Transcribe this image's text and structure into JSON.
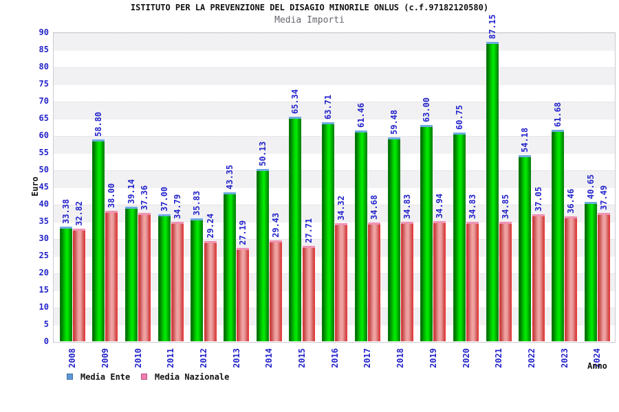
{
  "title": "ISTITUTO PER LA PREVENZIONE DEL DISAGIO MINORILE ONLUS (c.f.97182120580)",
  "subtitle": "Media Importi",
  "chart_data": {
    "type": "bar",
    "title": "ISTITUTO PER LA PREVENZIONE DEL DISAGIO MINORILE ONLUS (c.f.97182120580)",
    "subtitle": "Media Importi",
    "xlabel": "Anno",
    "ylabel": "Euro",
    "ylim": [
      0,
      90
    ],
    "ytick_step": 5,
    "grid": "horizontal-bands",
    "legend_position": "bottom-left",
    "categories": [
      "2008",
      "2009",
      "2010",
      "2011",
      "2012",
      "2013",
      "2014",
      "2015",
      "2016",
      "2017",
      "2018",
      "2019",
      "2020",
      "2021",
      "2022",
      "2023",
      "2024"
    ],
    "series": [
      {
        "name": "Media Ente",
        "bar_color": "#00cc00",
        "legend_color": "#5e9ad8",
        "values": [
          33.38,
          58.8,
          39.14,
          37.0,
          35.83,
          43.35,
          50.13,
          65.34,
          63.71,
          61.46,
          59.48,
          63.0,
          60.75,
          87.15,
          54.18,
          61.68,
          40.65
        ]
      },
      {
        "name": "Media Nazionale",
        "bar_color": "#ee8899",
        "legend_color": "#ee7fae",
        "values": [
          32.82,
          38.0,
          37.36,
          34.79,
          29.24,
          27.19,
          29.43,
          27.71,
          34.32,
          34.68,
          34.83,
          34.94,
          34.83,
          34.85,
          37.05,
          36.46,
          37.49
        ]
      }
    ],
    "value_label_color": "#2323cb"
  }
}
